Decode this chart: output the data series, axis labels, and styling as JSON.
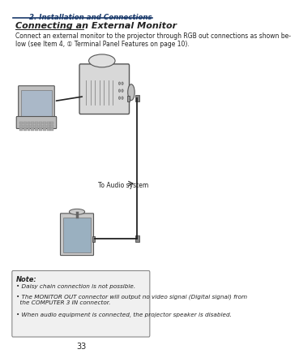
{
  "page_bg": "#ffffff",
  "header_text": "2. Installation and Connections",
  "header_color": "#1a3a6b",
  "header_line_color": "#1a3a6b",
  "title_text": "Connecting an External Monitor",
  "body_text": "Connect an external monitor to the projector through RGB out connections as shown be-\nlow (see Item 4, ① Terminal Panel Features on page 10).",
  "note_title": "Note:",
  "note_lines": [
    "• Daisy chain connection is not possible.",
    "• The MONITOR OUT connector will output no video signal (Digital signal) from\n  the COMPUTER 3 IN connector.",
    "• When audio equipment is connected, the projector speaker is disabled."
  ],
  "audio_label": "To Audio system",
  "page_number": "33",
  "note_box_color": "#f0f0f0",
  "note_border_color": "#888888",
  "diagram_line_color": "#222222",
  "text_color": "#222222"
}
